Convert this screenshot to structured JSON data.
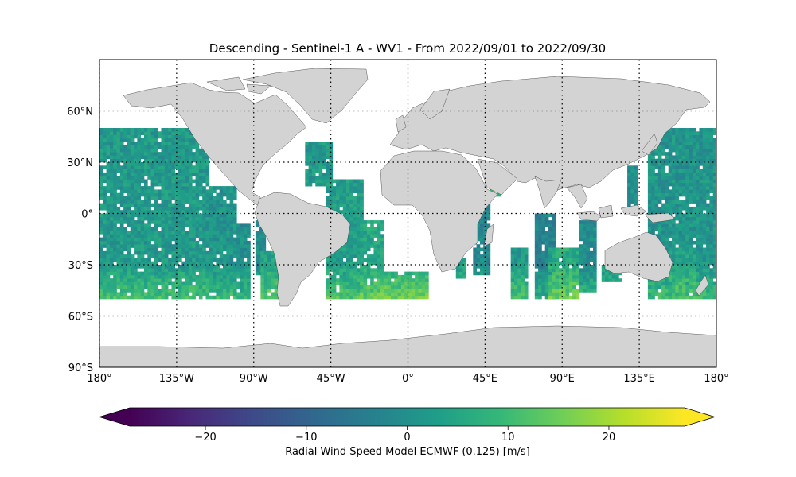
{
  "title": "Descending - Sentinel-1 A - WV1 - From 2022/09/01 to 2022/09/30",
  "map": {
    "projection": "PlateCarree",
    "extent": {
      "lon": [
        -180,
        180
      ],
      "lat": [
        -90,
        90
      ]
    },
    "land_color": "#d3d3d3",
    "ocean_color": "#ffffff",
    "gridlines": "dotted",
    "lat_ticks": [
      {
        "value": 60,
        "label": "60°N"
      },
      {
        "value": 30,
        "label": "30°N"
      },
      {
        "value": 0,
        "label": "0°"
      },
      {
        "value": -30,
        "label": "30°S"
      },
      {
        "value": -60,
        "label": "60°S"
      },
      {
        "value": -90,
        "label": "90°S"
      }
    ],
    "lon_ticks": [
      {
        "value": -180,
        "label": "180°"
      },
      {
        "value": -135,
        "label": "135°W"
      },
      {
        "value": -90,
        "label": "90°W"
      },
      {
        "value": -45,
        "label": "45°W"
      },
      {
        "value": 0,
        "label": "0°"
      },
      {
        "value": 45,
        "label": "45°E"
      },
      {
        "value": 90,
        "label": "90°E"
      },
      {
        "value": 135,
        "label": "135°E"
      },
      {
        "value": 180,
        "label": "180°"
      }
    ],
    "data_lat_range": [
      -50,
      50
    ],
    "data_cell_deg": 2,
    "swaths": [
      {
        "lon": [
          -180,
          -116
        ],
        "lat": [
          -50,
          50
        ],
        "base": 2
      },
      {
        "lon": [
          -116,
          -100
        ],
        "lat": [
          -50,
          16
        ],
        "base": 1
      },
      {
        "lon": [
          -100,
          -92
        ],
        "lat": [
          -50,
          -6
        ],
        "base": 0
      },
      {
        "lon": [
          -89,
          -84
        ],
        "lat": [
          -36,
          -4
        ],
        "base": -1
      },
      {
        "lon": [
          -86,
          -74
        ],
        "lat": [
          -50,
          -22
        ],
        "base": 4
      },
      {
        "lon": [
          -60,
          -44
        ],
        "lat": [
          16,
          42
        ],
        "base": 2
      },
      {
        "lon": [
          -48,
          -26
        ],
        "lat": [
          -50,
          20
        ],
        "base": 3
      },
      {
        "lon": [
          -28,
          -14
        ],
        "lat": [
          -50,
          -4
        ],
        "base": 5
      },
      {
        "lon": [
          -18,
          12
        ],
        "lat": [
          -50,
          -34
        ],
        "base": 6
      },
      {
        "lon": [
          28,
          34
        ],
        "lat": [
          -38,
          -26
        ],
        "base": 3
      },
      {
        "lon": [
          38,
          48
        ],
        "lat": [
          -36,
          10
        ],
        "base": -2
      },
      {
        "lon": [
          48,
          54
        ],
        "lat": [
          10,
          18
        ],
        "base": 8
      },
      {
        "lon": [
          60,
          70
        ],
        "lat": [
          -50,
          -20
        ],
        "base": 2
      },
      {
        "lon": [
          74,
          86
        ],
        "lat": [
          -50,
          0
        ],
        "base": -3
      },
      {
        "lon": [
          82,
          100
        ],
        "lat": [
          -50,
          -20
        ],
        "base": 6
      },
      {
        "lon": [
          100,
          110
        ],
        "lat": [
          -46,
          -4
        ],
        "base": -1
      },
      {
        "lon": [
          113,
          125
        ],
        "lat": [
          -40,
          -30
        ],
        "base": 1
      },
      {
        "lon": [
          128,
          134
        ],
        "lat": [
          2,
          28
        ],
        "base": 0
      },
      {
        "lon": [
          140,
          180
        ],
        "lat": [
          -50,
          50
        ],
        "base": 1
      },
      {
        "lon": [
          152,
          168
        ],
        "lat": [
          -46,
          -20
        ],
        "base": 4
      }
    ]
  },
  "colorbar": {
    "label": "Radial Wind Speed Model ECMWF (0.125) [m/s]",
    "vmin": -27.5,
    "vmax": 27.5,
    "extend": "both",
    "colormap": "viridis",
    "ticks": [
      {
        "value": -20,
        "label": "−20"
      },
      {
        "value": -10,
        "label": "−10"
      },
      {
        "value": 0,
        "label": "0"
      },
      {
        "value": 10,
        "label": "10"
      },
      {
        "value": 20,
        "label": "20"
      }
    ]
  }
}
